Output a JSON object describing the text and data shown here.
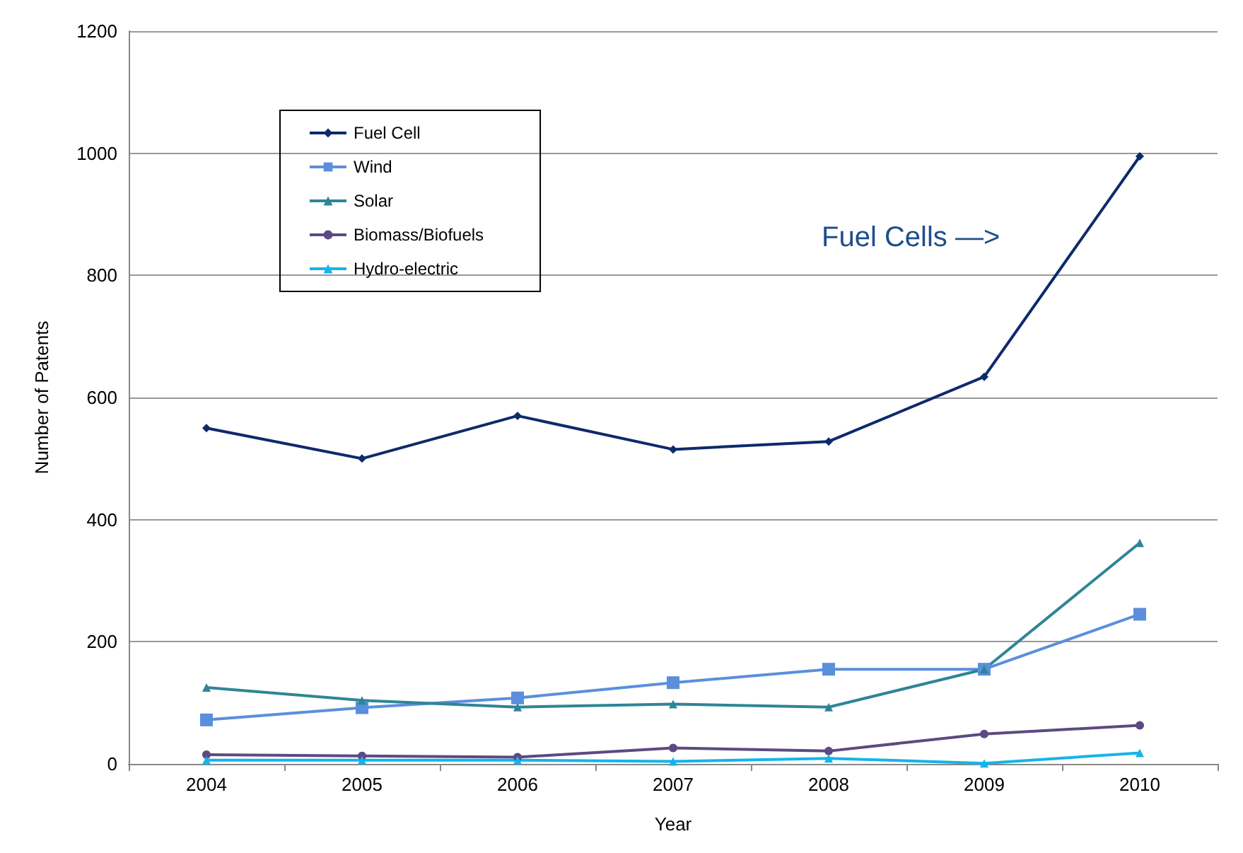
{
  "chart_data": {
    "type": "line",
    "xlabel": "Year",
    "ylabel": "Number of Patents",
    "categories": [
      "2004",
      "2005",
      "2006",
      "2007",
      "2008",
      "2009",
      "2010"
    ],
    "series": [
      {
        "name": "Fuel Cell",
        "color": "#0d2a6b",
        "marker": "diamond",
        "values": [
          550,
          500,
          570,
          515,
          528,
          634,
          995
        ]
      },
      {
        "name": "Wind",
        "color": "#5b8fdc",
        "marker": "square",
        "values": [
          72,
          92,
          108,
          133,
          155,
          155,
          245
        ]
      },
      {
        "name": "Solar",
        "color": "#2e8596",
        "marker": "triangle",
        "values": [
          125,
          104,
          93,
          98,
          93,
          155,
          362
        ]
      },
      {
        "name": "Biomass/Biofuels",
        "color": "#5c4a80",
        "marker": "circle",
        "values": [
          15,
          13,
          11,
          26,
          21,
          49,
          63
        ]
      },
      {
        "name": "Hydro-electric",
        "color": "#14b4ea",
        "marker": "triangle",
        "values": [
          6,
          6,
          6,
          4,
          9,
          1,
          18
        ]
      }
    ],
    "ylim": [
      0,
      1200
    ],
    "yticks": [
      0,
      200,
      400,
      600,
      800,
      1000,
      1200
    ],
    "grid": "y",
    "legend": "top left",
    "annotations": [
      "Fuel Cells —>"
    ]
  }
}
